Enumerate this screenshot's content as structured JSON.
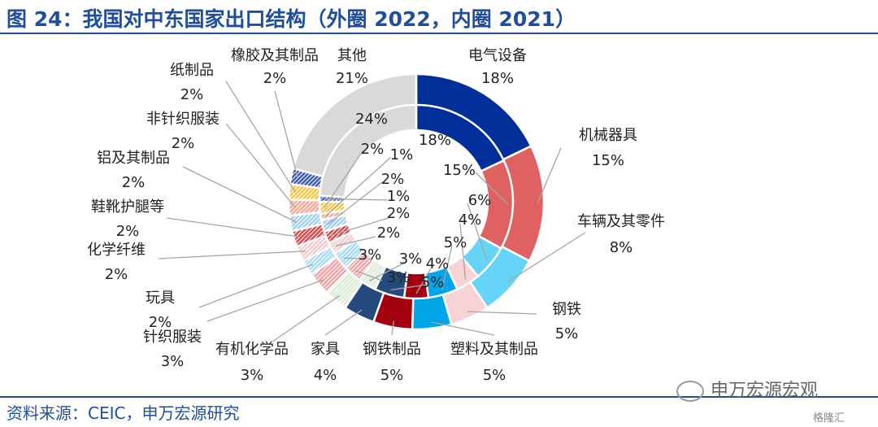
{
  "header": {
    "title": "图 24：我国对中东国家出口结构（外圈 2022，内圈 2021）"
  },
  "footer": {
    "source": "资料来源：CEIC，申万宏源研究"
  },
  "watermark": {
    "text": "申万宏源宏观",
    "logo": "格隆汇"
  },
  "chart_data": {
    "type": "pie",
    "title": "我国对中东国家出口结构（外圈 2022，内圈 2021）",
    "categories": [
      "电气设备",
      "机械器具",
      "车辆及其零件",
      "钢铁",
      "塑料及其制品",
      "钢铁制品",
      "家具",
      "有机化学品",
      "针织服装",
      "玩具",
      "化学纤维",
      "鞋靴护腿等",
      "铝及其制品",
      "非针织服装",
      "纸制品",
      "橡胶及其制品",
      "其他"
    ],
    "series": [
      {
        "ring": "outer",
        "values": [
          18,
          15,
          8,
          5,
          5,
          5,
          4,
          3,
          3,
          2,
          2,
          2,
          2,
          2,
          2,
          2,
          21
        ],
        "labels": [
          "18%",
          "15%",
          "8%",
          "5%",
          "5%",
          "5%",
          "4%",
          "3%",
          "3%",
          "2%",
          "2%",
          "2%",
          "2%",
          "2%",
          "2%",
          "2%",
          "21%"
        ]
      },
      {
        "ring": "inner",
        "values": [
          18,
          15,
          6,
          4,
          5,
          4,
          5,
          3,
          3,
          3,
          2,
          2,
          2,
          1,
          2,
          1,
          24
        ],
        "labels": [
          "18%",
          "15%",
          "6%",
          "4%",
          "5%",
          "4%",
          "5%",
          "3%",
          "3%",
          "3%",
          "2%",
          "2%",
          "2%",
          "1%",
          "2%",
          "1%",
          "24%"
        ]
      }
    ],
    "colors": [
      "#002f9a",
      "#e06162",
      "#66d4f7",
      "#f7d3d6",
      "#00a6e8",
      "#a30010",
      "#254a7e",
      "#dcecd7",
      "#f0a4a8",
      "#a9dcf2",
      "#f2cdd0",
      "#d94a4a",
      "#a7d1ec",
      "#f2a99a",
      "#f6c94b",
      "#3d5db3",
      "#d9d9d9"
    ],
    "hatched": [
      false,
      false,
      false,
      false,
      false,
      false,
      false,
      true,
      true,
      true,
      true,
      true,
      true,
      true,
      true,
      true,
      false
    ]
  }
}
